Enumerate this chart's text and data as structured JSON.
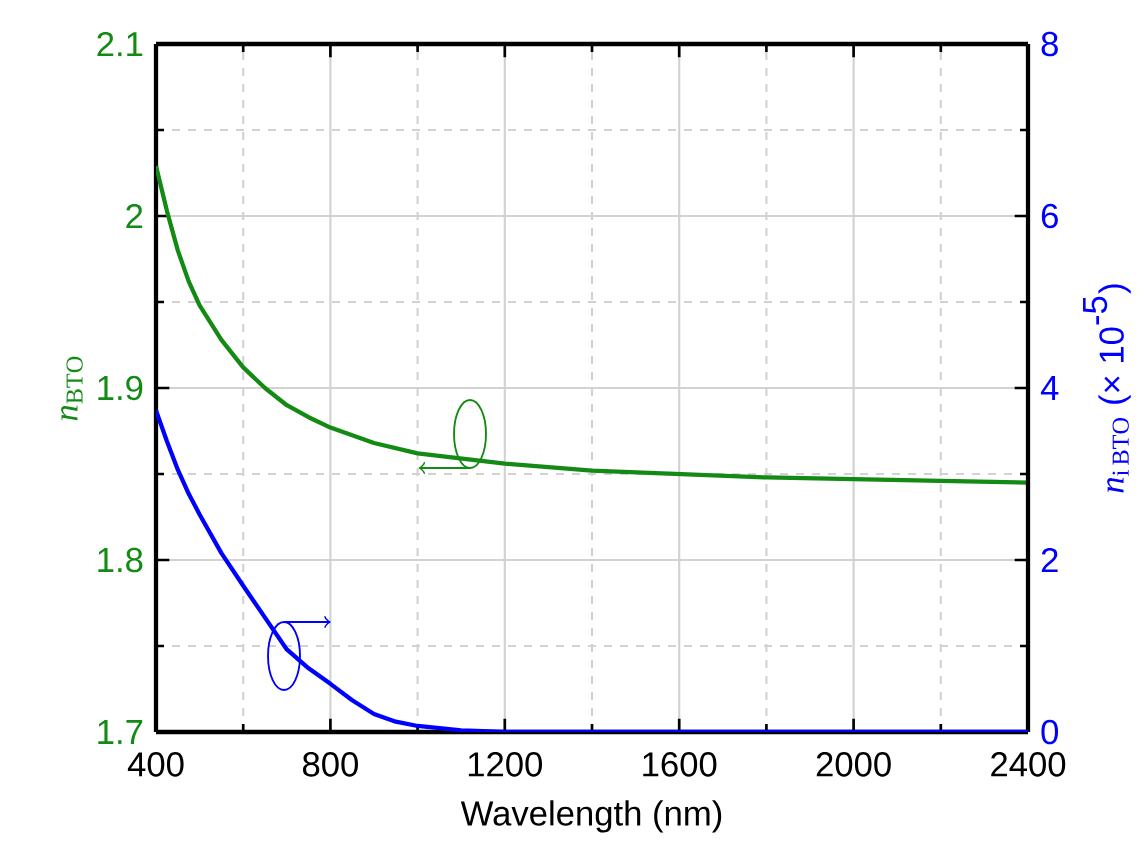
{
  "chart_data": {
    "type": "line",
    "xlabel": "Wavelength (nm)",
    "ylabel": "\\mathit{n}_{\\mathrm{BTO}}",
    "y2label": "\\mathit{n}_{\\mathrm{i\\,BTO}}\\mbox{ (× 10}^{\\mbox{-5}}\\mbox{)}",
    "xlim": [
      400,
      2400
    ],
    "xticks": [
      400,
      800,
      1200,
      1600,
      2000,
      2400
    ],
    "ylim": [
      1.7,
      2.1
    ],
    "yticks": [
      1.7,
      1.8,
      1.9,
      2,
      2.1
    ],
    "y2lim": [
      0,
      8
    ],
    "y2ticks": [
      0,
      2,
      4,
      6,
      8
    ],
    "grid": true,
    "series": [
      {
        "color": "#138a13",
        "x": [
          400,
          425,
          450,
          475,
          500,
          550,
          600,
          650,
          700,
          750,
          800,
          900,
          1000,
          1200,
          1400,
          1600,
          1800,
          2000,
          2200,
          2400
        ],
        "values": [
          2.029,
          2.003,
          1.98,
          1.962,
          1.948,
          1.928,
          1.912,
          1.9,
          1.89,
          1.883,
          1.877,
          1.868,
          1.862,
          1.856,
          1.852,
          1.85,
          1.848,
          1.847,
          1.846,
          1.845
        ]
      },
      {
        "color": "#0000ff",
        "axis": "y2",
        "x": [
          400,
          425,
          450,
          475,
          500,
          550,
          600,
          650,
          700,
          750,
          800,
          850,
          900,
          950,
          1000,
          1100,
          1200,
          1600,
          2000,
          2400
        ],
        "values": [
          3.74,
          3.38,
          3.05,
          2.77,
          2.53,
          2.08,
          1.7,
          1.33,
          0.96,
          0.74,
          0.56,
          0.37,
          0.21,
          0.12,
          0.07,
          0.02,
          0,
          0,
          0,
          0
        ]
      }
    ]
  }
}
